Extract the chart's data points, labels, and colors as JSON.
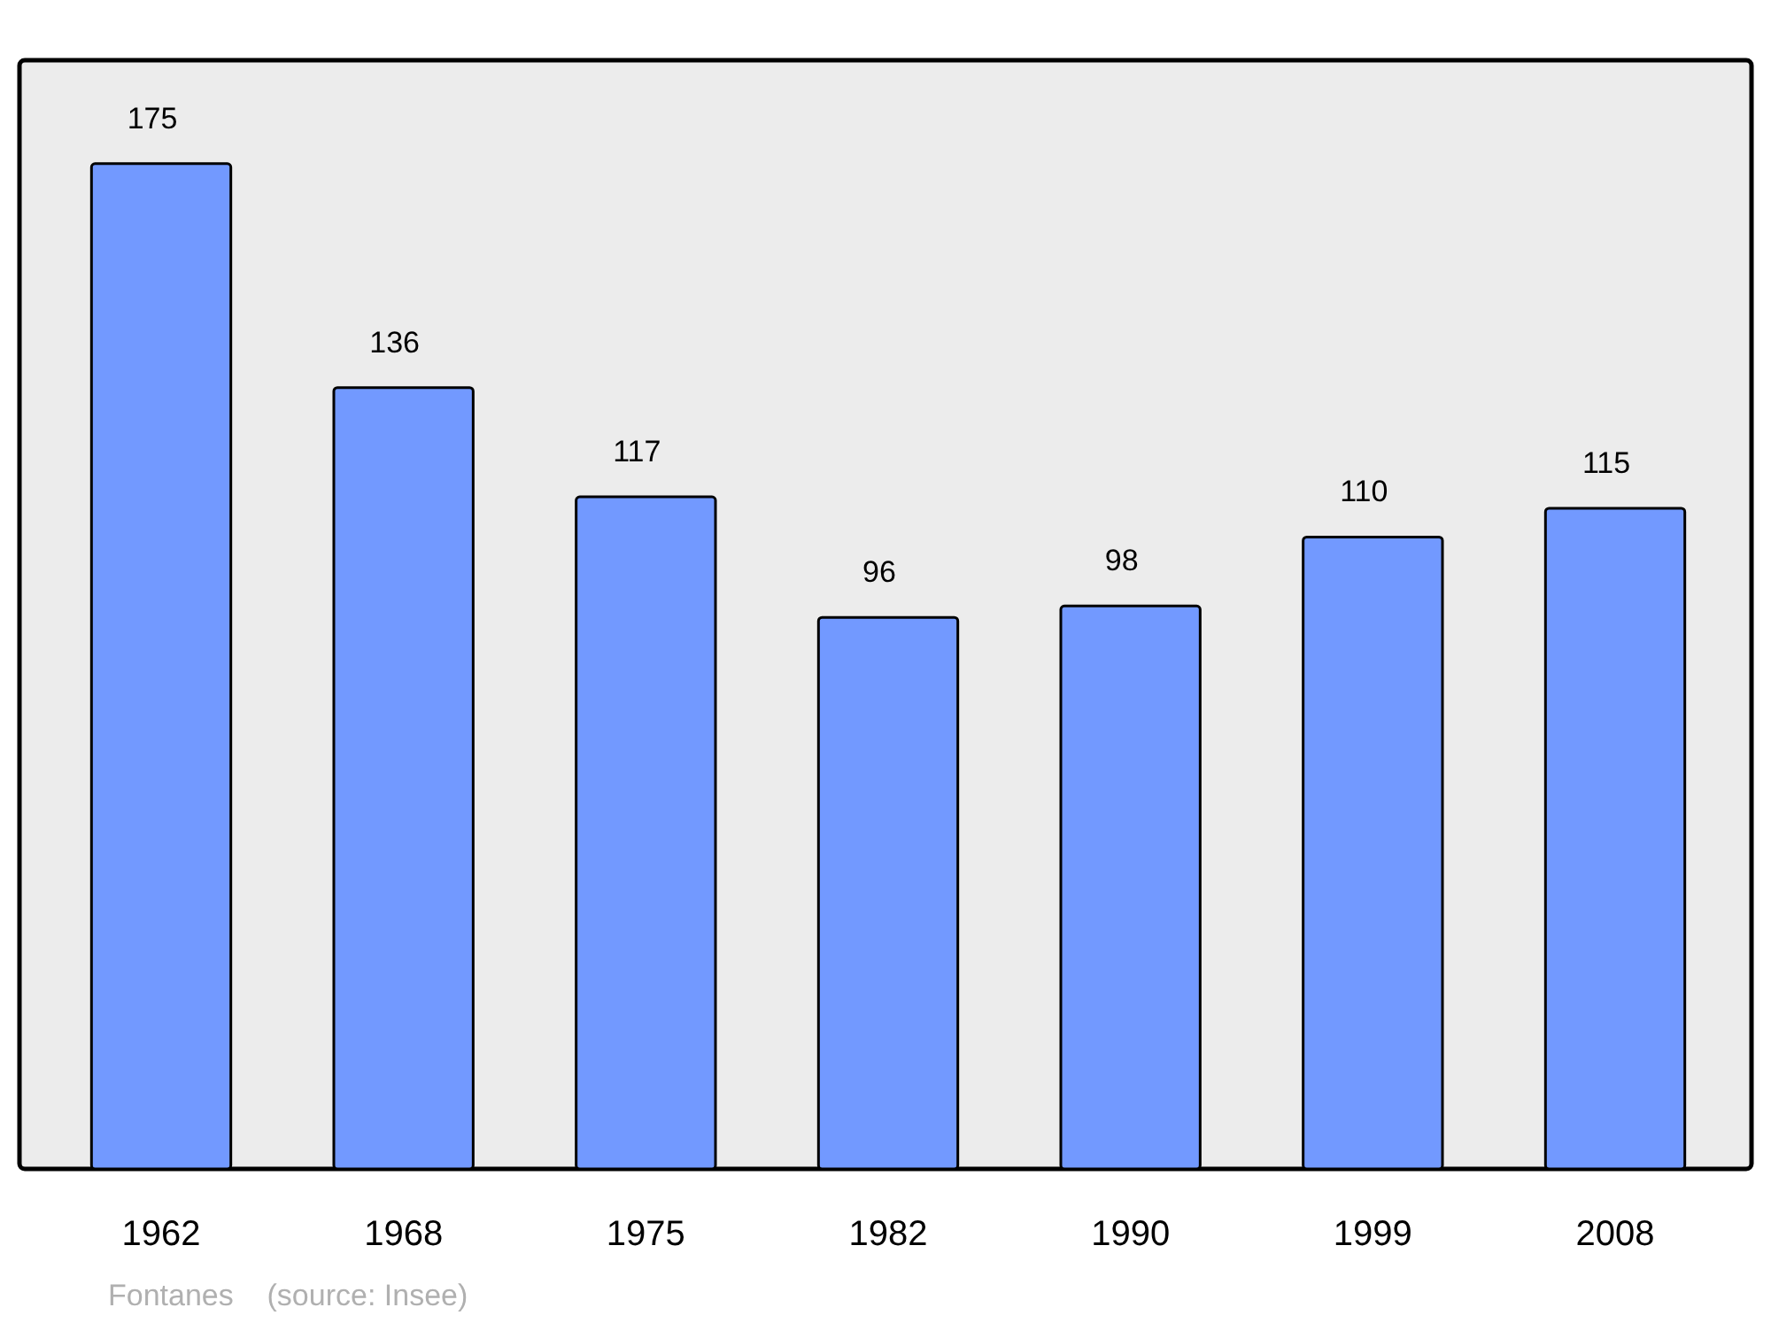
{
  "chart_data": {
    "type": "bar",
    "categories": [
      "1962",
      "1968",
      "1975",
      "1982",
      "1990",
      "1999",
      "2008"
    ],
    "values": [
      175,
      136,
      117,
      96,
      98,
      110,
      115
    ],
    "color": "#7299ff",
    "ylim": [
      0,
      193
    ],
    "tick_labels": "x",
    "data_labels": true,
    "annotations": [
      "Fontanes    (source: Insee)"
    ]
  }
}
